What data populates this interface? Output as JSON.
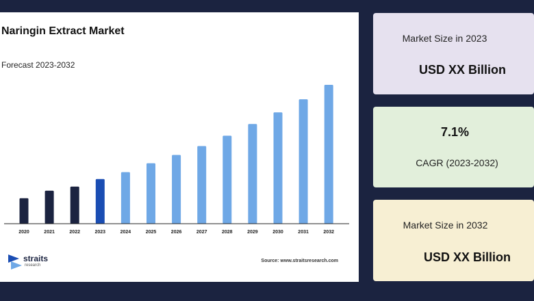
{
  "chart": {
    "title": "Naringin Extract Market",
    "subtitle": "Forecast 2023-2032",
    "source": "Source: www.straitsresearch.com"
  },
  "logo": {
    "name": "straits",
    "sub": "research"
  },
  "colors": {
    "historic": "#1b2340",
    "base_year": "#1a4db3",
    "forecast": "#6fa8e6",
    "background": "#1b2340"
  },
  "chart_data": {
    "type": "bar",
    "title": "Naringin Extract Market",
    "subtitle": "Forecast 2023-2032",
    "xlabel": "",
    "ylabel": "",
    "categories": [
      "2020",
      "2021",
      "2022",
      "2023",
      "2024",
      "2025",
      "2026",
      "2027",
      "2028",
      "2029",
      "2030",
      "2031",
      "2032"
    ],
    "values": [
      37,
      48,
      54,
      65,
      75,
      88,
      100,
      113,
      128,
      145,
      162,
      181,
      202
    ],
    "ylim": [
      0,
      210
    ],
    "grid": false,
    "legend": "none",
    "bar_groups": [
      "historic",
      "historic",
      "historic",
      "base_year",
      "forecast",
      "forecast",
      "forecast",
      "forecast",
      "forecast",
      "forecast",
      "forecast",
      "forecast",
      "forecast"
    ]
  },
  "cards": [
    {
      "label": "Market Size in 2023",
      "value": "USD XX Billion"
    },
    {
      "value": "7.1%",
      "label": "CAGR (2023-2032)"
    },
    {
      "label": "Market Size in 2032",
      "value": "USD XX Billion"
    }
  ]
}
